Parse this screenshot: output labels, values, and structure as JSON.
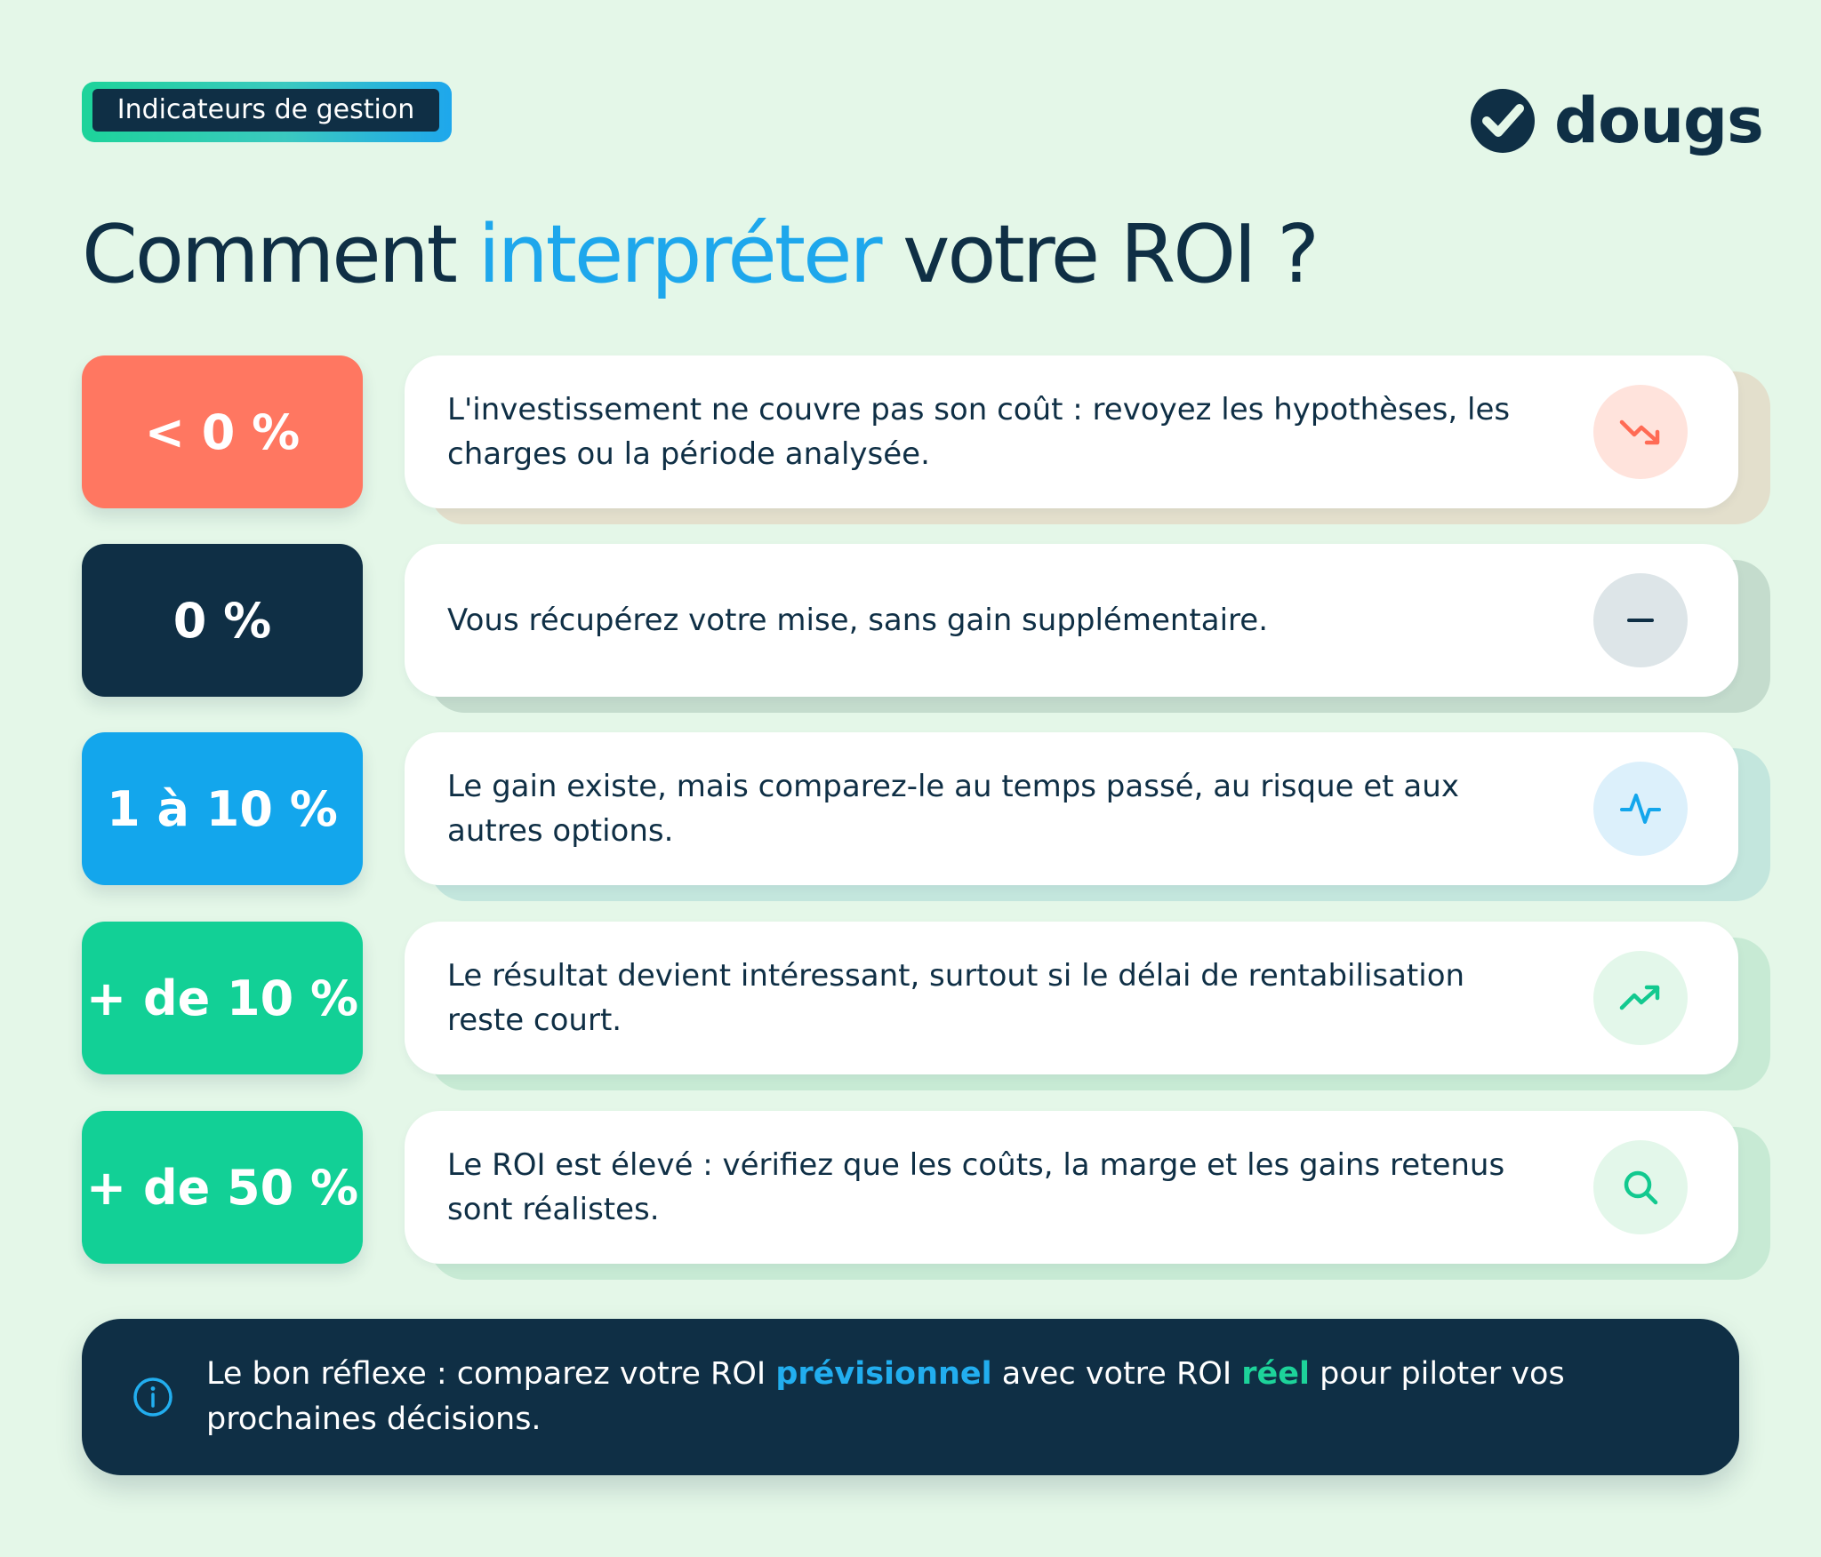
{
  "tag": {
    "label": "Indicateurs de gestion"
  },
  "brand": {
    "name": "dougs",
    "icon": "check-circle-icon"
  },
  "title": {
    "before": "Comment ",
    "highlight": "interpréter",
    "after": " votre ROI ?"
  },
  "rows": [
    {
      "badge": "< 0 %",
      "text": "L'investissement ne couvre pas son coût : revoyez les hypothèses, les charges ou la période analysée.",
      "icon": "trending-down-icon",
      "badge_color": "#ff7761",
      "icon_bg": "#ffe3dc",
      "icon_color": "#ff6b55",
      "under_color": "#e3dfcc"
    },
    {
      "badge": "0 %",
      "text": "Vous récupérez votre mise, sans gain supplémentaire.",
      "icon": "minus-icon",
      "badge_color": "#0f2f45",
      "icon_bg": "#dde5e8",
      "icon_color": "#0f2f45",
      "under_color": "#c4dccd"
    },
    {
      "badge": "1 à 10 %",
      "text": "Le gain existe, mais comparez-le au temps passé, au risque et aux autres options.",
      "icon": "pulse-icon",
      "badge_color": "#13a6ec",
      "icon_bg": "#dcf0fb",
      "icon_color": "#13a6ec",
      "under_color": "#c3e6dd"
    },
    {
      "badge": "+ de 10 %",
      "text": "Le résultat devient intéressant, surtout si le délai de rentabilisation reste court.",
      "icon": "trending-up-icon",
      "badge_color": "#12d096",
      "icon_bg": "#e3f7ea",
      "icon_color": "#12c98f",
      "under_color": "#c7ead4"
    },
    {
      "badge": "+ de 50 %",
      "text": "Le ROI est élevé : vérifiez que les coûts, la marge et les gains retenus sont réalistes.",
      "icon": "search-icon",
      "badge_color": "#12d096",
      "icon_bg": "#e3f7ea",
      "icon_color": "#12c98f",
      "under_color": "#c7ead4"
    }
  ],
  "footer": {
    "icon": "info-icon",
    "part1": "Le bon réflexe : comparez votre ROI ",
    "highlight1": "prévisionnel",
    "part2": " avec votre ROI ",
    "highlight2": "réel",
    "part3": " pour piloter vos prochaines décisions."
  }
}
